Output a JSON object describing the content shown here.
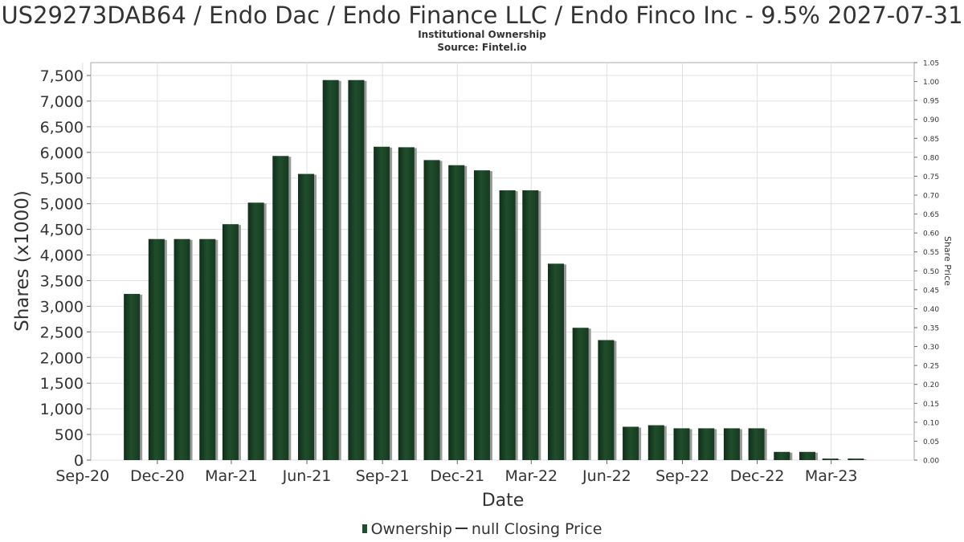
{
  "title": "US29273DAB64 / Endo Dac / Endo Finance LLC / Endo Finco Inc - 9.5% 2027-07-31",
  "subtitle": "Institutional Ownership",
  "source": "Source: Fintel.io",
  "legend": {
    "ownership_label": "Ownership",
    "price_label": "null Closing Price"
  },
  "colors": {
    "bar": "#1f4e2c",
    "bar_shadow": "#999999",
    "grid": "#e0e0e0",
    "text": "#333333"
  },
  "chart_data": {
    "type": "bar",
    "xlabel": "Date",
    "ylabel": "Shares (x1000)",
    "y2label": "Share Price",
    "ylim": [
      0,
      7750
    ],
    "y2lim": [
      0,
      1.05
    ],
    "yticks": [
      "0",
      "500",
      "1,000",
      "1,500",
      "2,000",
      "2,500",
      "3,000",
      "3,500",
      "4,000",
      "4,500",
      "5,000",
      "5,500",
      "6,000",
      "6,500",
      "7,000",
      "7,500"
    ],
    "y2ticks": [
      "0.00",
      "0.05",
      "0.10",
      "0.15",
      "0.20",
      "0.25",
      "0.30",
      "0.35",
      "0.40",
      "0.45",
      "0.50",
      "0.55",
      "0.60",
      "0.65",
      "0.70",
      "0.75",
      "0.80",
      "0.85",
      "0.90",
      "0.95",
      "1.00",
      "1.05"
    ],
    "xticks": [
      "Sep-20",
      "Dec-20",
      "Mar-21",
      "Jun-21",
      "Sep-21",
      "Dec-21",
      "Mar-22",
      "Jun-22",
      "Sep-22",
      "Dec-22",
      "Mar-23"
    ],
    "x": [
      "2020-10-31",
      "2020-11-30",
      "2020-12-31",
      "2021-01-31",
      "2021-02-28",
      "2021-03-31",
      "2021-04-30",
      "2021-05-31",
      "2021-06-30",
      "2021-07-31",
      "2021-08-31",
      "2021-09-30",
      "2021-10-31",
      "2021-11-30",
      "2021-12-31",
      "2022-01-31",
      "2022-02-28",
      "2022-03-31",
      "2022-04-30",
      "2022-05-31",
      "2022-06-30",
      "2022-07-31",
      "2022-08-31",
      "2022-09-30",
      "2022-10-31",
      "2022-11-30",
      "2022-12-31",
      "2023-01-31",
      "2023-02-28",
      "2023-03-31"
    ],
    "series": [
      {
        "name": "Ownership",
        "values": [
          3240,
          4310,
          4310,
          4310,
          4600,
          5020,
          5930,
          5580,
          7410,
          7410,
          6110,
          6100,
          5850,
          5750,
          5650,
          5260,
          5260,
          3830,
          2580,
          2340,
          650,
          680,
          620,
          620,
          620,
          620,
          160,
          160,
          30,
          30
        ]
      }
    ],
    "grid": true,
    "legend_position": "bottom"
  }
}
